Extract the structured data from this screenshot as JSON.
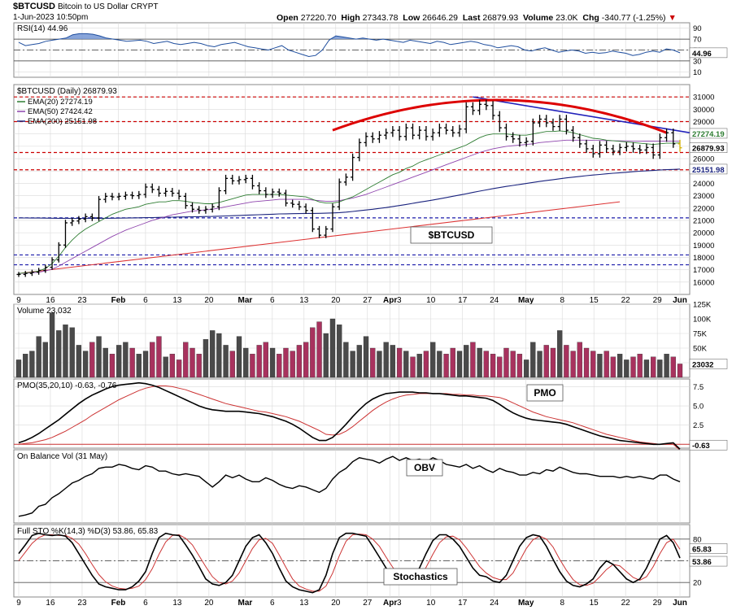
{
  "header": {
    "symbol": "$BTCUSD",
    "name": "Bitcoin to US Dollar",
    "exchange": "CRYPT",
    "date": "1-Jun-2023 10:50pm",
    "open_label": "Open",
    "open": "27220.70",
    "high_label": "High",
    "high": "27343.78",
    "low_label": "Low",
    "low": "26646.29",
    "last_label": "Last",
    "last": "26879.93",
    "volume_label": "Volume",
    "volume": "23.0K",
    "chg_label": "Chg",
    "chg": "-340.77 (-1.25%)"
  },
  "colors": {
    "bg": "#ffffff",
    "grid": "#d9d9d9",
    "price": "#000000",
    "ema20": "#2e7d32",
    "ema50": "#8e44ad",
    "ema200": "#1a237e",
    "support": "#cc0000",
    "support_blue": "#1a1aaa",
    "arc": "#dd0000",
    "trend_blue": "#2222bb",
    "trend_red": "#dd3333",
    "vol_up": "#4a4a4a",
    "vol_down": "#a8325e",
    "rsi": "#1f4e9e",
    "rsi_fill": "#6a8fd1",
    "pmo_signal": "#cc3333"
  },
  "chart_data": [
    {
      "panel": "rsi",
      "type": "line",
      "title": "RSI(14) 44.96",
      "last": "44.96",
      "ylim": [
        0,
        100
      ],
      "ticks": [
        "90",
        "70",
        "50",
        "30",
        "10"
      ],
      "values": [
        64,
        58,
        60,
        62,
        66,
        68,
        70,
        72,
        78,
        80,
        80,
        79,
        76,
        72,
        70,
        68,
        66,
        67,
        68,
        66,
        62,
        64,
        66,
        62,
        60,
        62,
        64,
        62,
        58,
        56,
        60,
        62,
        64,
        60,
        56,
        54,
        52,
        50,
        54,
        58,
        50,
        46,
        42,
        38,
        40,
        50,
        68,
        76,
        74,
        72,
        70,
        72,
        70,
        68,
        70,
        68,
        66,
        64,
        68,
        66,
        64,
        62,
        66,
        64,
        60,
        62,
        64,
        66,
        64,
        60,
        58,
        54,
        56,
        58,
        56,
        50,
        48,
        52,
        54,
        50,
        46,
        48,
        50,
        48,
        44,
        46,
        44,
        45,
        48,
        46,
        44,
        40,
        42,
        46,
        48,
        46,
        52,
        50,
        44.96
      ]
    },
    {
      "panel": "price",
      "type": "bar",
      "title": "$BTCUSD (Daily) 26879.93",
      "label": "$BTCUSD",
      "ylim": [
        15000,
        32000
      ],
      "ticks": [
        "31000",
        "30000",
        "29000",
        "28000",
        "27000",
        "26000",
        "25000",
        "24000",
        "23000",
        "22000",
        "21000",
        "20000",
        "19000",
        "18000",
        "17000",
        "16000"
      ],
      "legend": [
        "EMA(20) 27274.19",
        "EMA(50) 27424.42",
        "EMA(200) 25151.98"
      ],
      "last_value": "26879.93",
      "ema200_value": "25151.98",
      "ema_value_stub": "27274.19",
      "close": [
        16620,
        16700,
        16800,
        16950,
        17200,
        17800,
        19000,
        20800,
        20950,
        21100,
        21300,
        21200,
        22700,
        22950,
        22900,
        22950,
        23050,
        23000,
        23100,
        23700,
        23500,
        23200,
        23350,
        23200,
        22950,
        22200,
        21900,
        21800,
        21900,
        22100,
        23400,
        24400,
        24200,
        24300,
        24400,
        23800,
        23400,
        23100,
        23300,
        23200,
        22400,
        22300,
        22100,
        21800,
        20300,
        19800,
        20300,
        22100,
        24100,
        24500,
        26100,
        27300,
        27800,
        27600,
        27900,
        28100,
        28300,
        27800,
        28500,
        27900,
        28300,
        27800,
        28100,
        28500,
        28300,
        28100,
        28400,
        30200,
        29900,
        30400,
        30300,
        29500,
        28500,
        27800,
        27600,
        27300,
        27400,
        28900,
        29200,
        28900,
        28600,
        29200,
        28300,
        27700,
        27200,
        26800,
        26400,
        27100,
        26800,
        26600,
        26900,
        27000,
        26800,
        26700,
        26900,
        26300,
        27700,
        28100,
        27200,
        26879.93
      ],
      "ema20": [
        16700,
        16750,
        16800,
        16900,
        17100,
        17500,
        18100,
        18800,
        19400,
        19900,
        20300,
        20600,
        20900,
        21200,
        21500,
        21700,
        21900,
        22000,
        22100,
        22300,
        22400,
        22500,
        22500,
        22600,
        22600,
        22550,
        22450,
        22400,
        22350,
        22350,
        22450,
        22600,
        22750,
        22900,
        23050,
        23100,
        23100,
        23100,
        23100,
        23100,
        23050,
        23000,
        22950,
        22900,
        22700,
        22500,
        22400,
        22400,
        22500,
        22700,
        22900,
        23200,
        23500,
        23800,
        24100,
        24400,
        24700,
        24900,
        25200,
        25400,
        25700,
        25900,
        26100,
        26300,
        26500,
        26700,
        26900,
        27100,
        27400,
        27700,
        27900,
        28000,
        28000,
        28000,
        27950,
        27900,
        27900,
        28000,
        28100,
        28200,
        28200,
        28250,
        28200,
        28100,
        27950,
        27800,
        27650,
        27600,
        27500,
        27450,
        27400,
        27350,
        27300,
        27250,
        27200,
        27150,
        27200,
        27250,
        27250,
        27274.19
      ],
      "ema50": [
        16700,
        16720,
        16750,
        16800,
        16900,
        17050,
        17300,
        17600,
        17900,
        18200,
        18500,
        18800,
        19100,
        19400,
        19700,
        19950,
        20200,
        20400,
        20600,
        20800,
        21000,
        21150,
        21300,
        21450,
        21550,
        21650,
        21750,
        21800,
        21850,
        21900,
        22000,
        22100,
        22200,
        22300,
        22400,
        22500,
        22550,
        22600,
        22650,
        22700,
        22700,
        22700,
        22700,
        22700,
        22650,
        22600,
        22550,
        22550,
        22600,
        22700,
        22800,
        22950,
        23100,
        23300,
        23500,
        23700,
        23900,
        24100,
        24300,
        24500,
        24700,
        24900,
        25100,
        25300,
        25500,
        25700,
        25900,
        26100,
        26300,
        26500,
        26650,
        26800,
        26900,
        27000,
        27050,
        27100,
        27150,
        27200,
        27300,
        27350,
        27400,
        27450,
        27500,
        27500,
        27500,
        27500,
        27480,
        27470,
        27460,
        27450,
        27440,
        27440,
        27430,
        27430,
        27420,
        27420,
        27430,
        27430,
        27425,
        27424.42
      ],
      "ema200": [
        21200,
        21195,
        21190,
        21185,
        21180,
        21175,
        21170,
        21165,
        21160,
        21160,
        21160,
        21160,
        21165,
        21170,
        21175,
        21180,
        21190,
        21200,
        21210,
        21220,
        21230,
        21240,
        21250,
        21260,
        21270,
        21280,
        21290,
        21300,
        21310,
        21320,
        21340,
        21360,
        21380,
        21400,
        21420,
        21440,
        21460,
        21480,
        21500,
        21520,
        21530,
        21540,
        21550,
        21560,
        21565,
        21570,
        21580,
        21600,
        21630,
        21670,
        21720,
        21780,
        21840,
        21900,
        21970,
        22040,
        22120,
        22200,
        22290,
        22380,
        22470,
        22560,
        22650,
        22750,
        22850,
        22950,
        23050,
        23150,
        23260,
        23370,
        23470,
        23570,
        23660,
        23750,
        23830,
        23910,
        23990,
        24070,
        24150,
        24230,
        24300,
        24370,
        24440,
        24500,
        24560,
        24620,
        24670,
        24720,
        24770,
        24820,
        24860,
        24900,
        24940,
        24980,
        25010,
        25040,
        25080,
        25110,
        25130,
        25151.98
      ],
      "hlines_red": [
        31000,
        29000,
        26500,
        25100
      ],
      "hlines_blue": [
        21200,
        18200,
        17400
      ]
    },
    {
      "panel": "volume",
      "type": "bar",
      "title": "Volume 23,032",
      "last": "23032",
      "ylim": [
        0,
        125000
      ],
      "ticks": [
        "125K",
        "100K",
        "75K",
        "50K",
        "25K"
      ],
      "values": [
        30,
        40,
        45,
        70,
        60,
        110,
        80,
        90,
        85,
        55,
        45,
        60,
        70,
        50,
        40,
        55,
        60,
        50,
        40,
        45,
        60,
        70,
        35,
        40,
        30,
        60,
        50,
        40,
        65,
        80,
        75,
        55,
        45,
        70,
        50,
        40,
        55,
        60,
        50,
        40,
        50,
        45,
        55,
        60,
        85,
        95,
        75,
        100,
        90,
        60,
        45,
        55,
        70,
        50,
        45,
        60,
        55,
        50,
        45,
        35,
        40,
        45,
        60,
        45,
        40,
        50,
        45,
        55,
        60,
        50,
        45,
        40,
        35,
        50,
        45,
        40,
        30,
        60,
        45,
        55,
        50,
        80,
        55,
        45,
        60,
        50,
        45,
        40,
        45,
        35,
        40,
        30,
        35,
        40,
        30,
        35,
        30,
        40,
        35,
        23
      ]
    },
    {
      "panel": "pmo",
      "type": "line",
      "title": "PMO(35,20,10) -0.63, -0.76",
      "label": "PMO",
      "last": "-0.63",
      "ylim": [
        -0.5,
        8.5
      ],
      "ticks": [
        "7.5",
        "5.0",
        "2.5",
        "0.0"
      ],
      "pmo": [
        0.2,
        0.5,
        0.9,
        1.4,
        2.0,
        2.6,
        3.2,
        3.9,
        4.6,
        5.3,
        5.9,
        6.4,
        6.8,
        7.2,
        7.5,
        7.7,
        7.8,
        7.9,
        8.0,
        7.9,
        7.7,
        7.4,
        7.0,
        6.6,
        6.2,
        5.8,
        5.4,
        5.0,
        4.7,
        4.5,
        4.4,
        4.3,
        4.3,
        4.3,
        4.2,
        4.1,
        4.0,
        3.8,
        3.6,
        3.3,
        3.0,
        2.6,
        2.1,
        1.5,
        0.9,
        0.5,
        0.5,
        0.9,
        1.7,
        2.6,
        3.6,
        4.5,
        5.3,
        5.9,
        6.3,
        6.6,
        6.7,
        6.8,
        6.8,
        6.8,
        6.7,
        6.7,
        6.6,
        6.6,
        6.5,
        6.4,
        6.3,
        6.3,
        6.2,
        6.1,
        6.0,
        5.7,
        5.2,
        4.6,
        4.1,
        3.7,
        3.4,
        3.2,
        3.1,
        3.0,
        2.9,
        2.8,
        2.6,
        2.3,
        2.0,
        1.7,
        1.4,
        1.1,
        0.9,
        0.7,
        0.5,
        0.4,
        0.3,
        0.2,
        0.1,
        0.0,
        0.0,
        0.1,
        0.2,
        -0.63
      ],
      "signal": [
        0.0,
        0.1,
        0.2,
        0.4,
        0.6,
        0.9,
        1.3,
        1.7,
        2.2,
        2.7,
        3.2,
        3.8,
        4.3,
        4.8,
        5.3,
        5.8,
        6.2,
        6.6,
        7.0,
        7.3,
        7.5,
        7.6,
        7.6,
        7.5,
        7.3,
        7.1,
        6.8,
        6.5,
        6.2,
        5.9,
        5.6,
        5.3,
        5.1,
        4.9,
        4.7,
        4.5,
        4.3,
        4.2,
        4.0,
        3.8,
        3.6,
        3.3,
        3.0,
        2.6,
        2.2,
        1.8,
        1.3,
        1.2,
        1.3,
        1.7,
        2.3,
        3.0,
        3.7,
        4.4,
        5.0,
        5.5,
        5.9,
        6.2,
        6.4,
        6.5,
        6.6,
        6.6,
        6.6,
        6.6,
        6.6,
        6.5,
        6.5,
        6.4,
        6.4,
        6.3,
        6.3,
        6.2,
        6.1,
        5.8,
        5.4,
        5.0,
        4.6,
        4.2,
        3.9,
        3.6,
        3.4,
        3.2,
        3.0,
        2.8,
        2.5,
        2.2,
        1.9,
        1.6,
        1.3,
        1.1,
        0.9,
        0.7,
        0.5,
        0.3,
        0.2,
        0.1,
        0.0,
        0.0,
        0.0,
        -0.76
      ]
    },
    {
      "panel": "obv",
      "type": "line",
      "title": "On Balance Vol (31 May)",
      "label": "OBV",
      "values": [
        10,
        12,
        15,
        25,
        28,
        38,
        44,
        52,
        60,
        64,
        70,
        74,
        82,
        84,
        84,
        88,
        86,
        82,
        80,
        86,
        84,
        78,
        78,
        74,
        72,
        74,
        72,
        70,
        62,
        54,
        62,
        72,
        68,
        72,
        66,
        62,
        62,
        68,
        64,
        58,
        54,
        52,
        56,
        54,
        50,
        46,
        52,
        66,
        76,
        82,
        92,
        98,
        96,
        94,
        90,
        96,
        100,
        94,
        98,
        94,
        96,
        92,
        98,
        94,
        88,
        86,
        84,
        88,
        82,
        86,
        80,
        76,
        82,
        78,
        76,
        72,
        72,
        76,
        74,
        80,
        78,
        84,
        80,
        76,
        74,
        74,
        72,
        70,
        70,
        70,
        68,
        70,
        68,
        70,
        68,
        66,
        72,
        72,
        66,
        62
      ]
    },
    {
      "panel": "stochastics",
      "type": "line",
      "title": "Full STO %K(14,3) %D(3) 53.86, 65.83",
      "label": "Stochastics",
      "ylim": [
        0,
        100
      ],
      "ticks": [
        "80",
        "50",
        "20"
      ],
      "last_k": "53.86",
      "last_d": "65.83",
      "k": [
        60,
        72,
        85,
        88,
        86,
        85,
        86,
        84,
        75,
        60,
        45,
        30,
        18,
        14,
        12,
        10,
        10,
        14,
        22,
        35,
        60,
        82,
        88,
        86,
        85,
        72,
        58,
        42,
        25,
        18,
        16,
        20,
        30,
        50,
        70,
        82,
        86,
        75,
        60,
        40,
        22,
        14,
        10,
        8,
        6,
        10,
        30,
        60,
        82,
        88,
        88,
        86,
        84,
        70,
        55,
        40,
        28,
        20,
        18,
        22,
        40,
        60,
        78,
        86,
        86,
        80,
        70,
        55,
        40,
        30,
        28,
        22,
        20,
        30,
        50,
        70,
        82,
        86,
        84,
        70,
        52,
        35,
        22,
        16,
        14,
        18,
        25,
        40,
        50,
        45,
        35,
        25,
        20,
        25,
        40,
        60,
        80,
        85,
        75,
        53.86
      ],
      "d": [
        50,
        62,
        74,
        82,
        86,
        86,
        85,
        85,
        81,
        73,
        60,
        45,
        31,
        21,
        15,
        12,
        11,
        12,
        15,
        24,
        39,
        59,
        76,
        85,
        86,
        81,
        72,
        57,
        42,
        28,
        20,
        18,
        22,
        33,
        50,
        67,
        79,
        81,
        74,
        58,
        41,
        25,
        15,
        11,
        8,
        8,
        15,
        33,
        57,
        77,
        86,
        87,
        86,
        80,
        70,
        55,
        41,
        29,
        22,
        20,
        27,
        41,
        59,
        75,
        83,
        84,
        79,
        68,
        55,
        42,
        33,
        27,
        24,
        24,
        33,
        50,
        67,
        79,
        84,
        80,
        69,
        52,
        37,
        24,
        17,
        16,
        19,
        28,
        38,
        45,
        43,
        35,
        27,
        23,
        28,
        42,
        60,
        75,
        80,
        65.83
      ]
    }
  ],
  "xaxis": {
    "labels": [
      "9",
      "16",
      "23",
      "Feb",
      "6",
      "13",
      "20",
      "Mar",
      "6",
      "13",
      "20",
      "27",
      "Apr",
      "3",
      "10",
      "17",
      "24",
      "May",
      "8",
      "15",
      "22",
      "29",
      "Jun"
    ],
    "label_bars": [
      0,
      7,
      14,
      22,
      28,
      35,
      42,
      50,
      56,
      63,
      70,
      77,
      82,
      84,
      91,
      98,
      105,
      112,
      120,
      127,
      134,
      141,
      146
    ]
  }
}
